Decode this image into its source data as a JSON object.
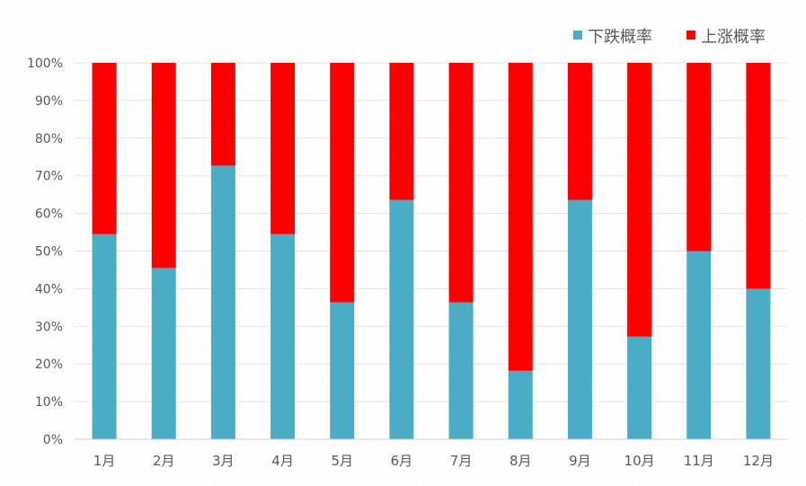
{
  "chart_data": {
    "type": "bar",
    "stacked": true,
    "categories": [
      "1月",
      "2月",
      "3月",
      "4月",
      "5月",
      "6月",
      "7月",
      "8月",
      "9月",
      "10月",
      "11月",
      "12月"
    ],
    "series": [
      {
        "name": "下跌概率",
        "color": "#4BACC6",
        "values": [
          54.5,
          45.5,
          72.7,
          54.5,
          36.4,
          63.6,
          36.4,
          18.2,
          63.6,
          27.3,
          50.0,
          40.0
        ]
      },
      {
        "name": "上涨概率",
        "color": "#FF0000",
        "values": [
          45.5,
          54.5,
          27.3,
          45.5,
          63.6,
          36.4,
          63.6,
          81.8,
          36.4,
          72.7,
          50.0,
          60.0
        ]
      }
    ],
    "ylim": [
      0,
      100
    ],
    "yticks": [
      "0%",
      "10%",
      "20%",
      "30%",
      "40%",
      "50%",
      "60%",
      "70%",
      "80%",
      "90%",
      "100%"
    ],
    "grid": true,
    "legend_position": "top-right",
    "legend": [
      {
        "label": "下跌概率",
        "color": "#4BACC6"
      },
      {
        "label": "上涨概率",
        "color": "#FF0000"
      }
    ]
  }
}
